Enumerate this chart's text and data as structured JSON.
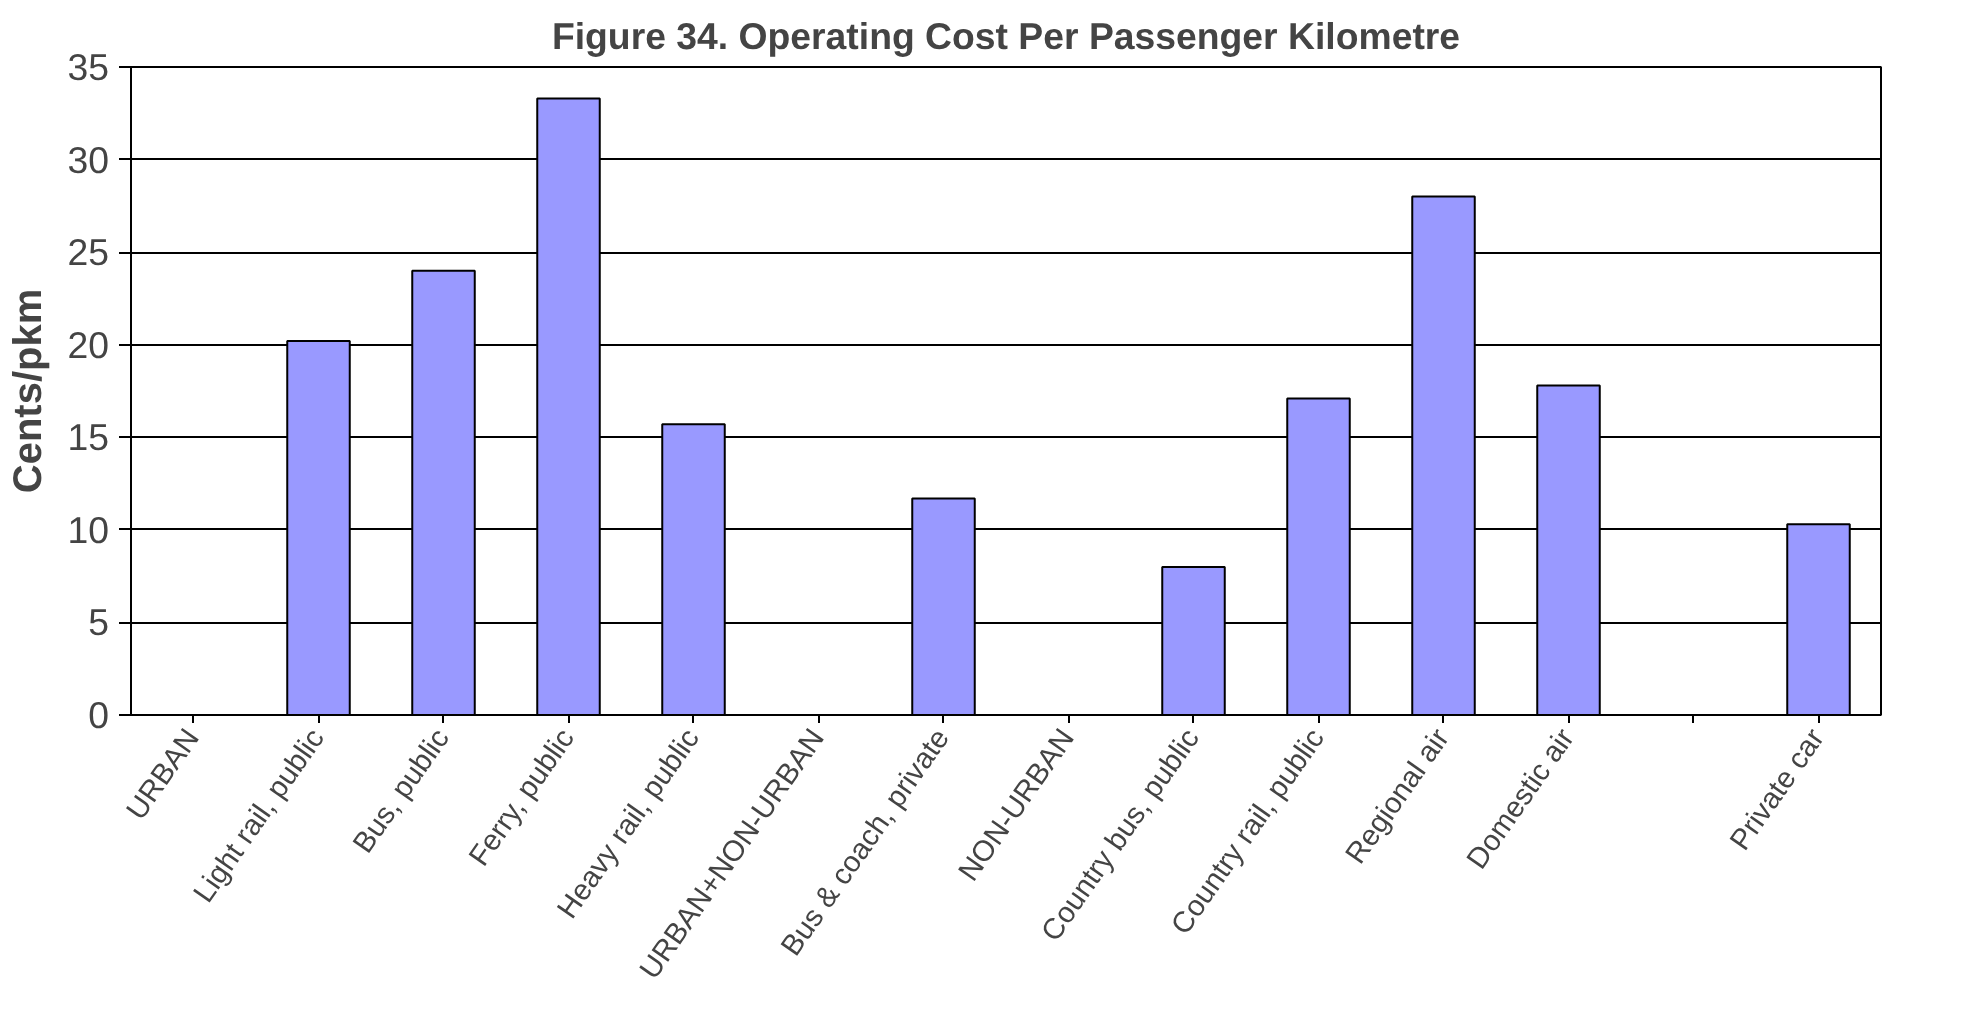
{
  "chart_data": {
    "type": "bar",
    "title": "Figure 34. Operating Cost Per Passenger Kilometre",
    "ylabel": "Cents/pkm",
    "categories": [
      "URBAN",
      "Light rail, public",
      "Bus, public",
      "Ferry, public",
      "Heavy rail, public",
      "URBAN+NON-URBAN",
      "Bus & coach, private",
      "NON-URBAN",
      "Country bus, public",
      "Country rail, public",
      "Regional air",
      "Domestic air",
      null,
      "Private car"
    ],
    "values": [
      null,
      20.2,
      24,
      33.3,
      15.7,
      null,
      11.7,
      null,
      8,
      17.1,
      28,
      17.8,
      null,
      10.3
    ],
    "color": "#9999ff",
    "ylim": [
      0,
      35
    ],
    "yticks": [
      0,
      5,
      10,
      15,
      20,
      25,
      30,
      35
    ],
    "grid": "y"
  }
}
